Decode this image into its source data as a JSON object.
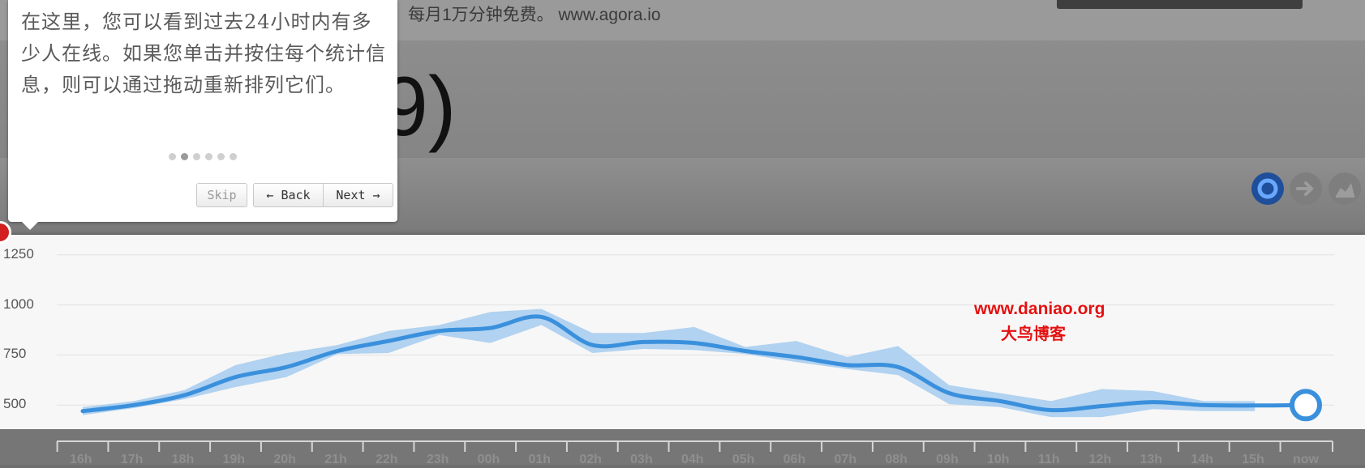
{
  "background": {
    "top_text": "。每月1万分钟免费。 www.agora.io",
    "heading_fragment": "9)"
  },
  "toolbar": {
    "icons": [
      "circle-chart-icon",
      "arrow-right-icon",
      "area-chart-icon"
    ],
    "accent": "#1f4f9a"
  },
  "tour": {
    "text": "在这里，您可以看到过去24小时内有多少人在线。如果您单击并按住每个统计信息，则可以通过拖动重新排列它们。",
    "step": 2,
    "step_count": 6,
    "skip_label": "Skip",
    "back_label": "← Back",
    "next_label": "Next →"
  },
  "watermark": {
    "url": "www.daniao.org",
    "name": "大鸟博客"
  },
  "chart_data": {
    "type": "line",
    "x": [
      "16h",
      "17h",
      "18h",
      "19h",
      "20h",
      "21h",
      "22h",
      "23h",
      "00h",
      "01h",
      "02h",
      "03h",
      "04h",
      "05h",
      "06h",
      "07h",
      "08h",
      "09h",
      "10h",
      "11h",
      "12h",
      "13h",
      "14h",
      "15h",
      "now"
    ],
    "y_ticks": [
      500,
      750,
      1000,
      1250
    ],
    "ylim": [
      380,
      1350
    ],
    "series": [
      {
        "values": [
          470,
          500,
          550,
          640,
          690,
          770,
          820,
          870,
          885,
          940,
          800,
          815,
          810,
          770,
          740,
          700,
          690,
          560,
          520,
          475,
          495,
          515,
          500,
          498,
          500
        ],
        "low": [
          450,
          485,
          530,
          590,
          640,
          755,
          760,
          850,
          810,
          900,
          760,
          780,
          775,
          755,
          715,
          680,
          650,
          505,
          490,
          440,
          440,
          480,
          470,
          470,
          500
        ],
        "high": [
          490,
          520,
          575,
          700,
          760,
          800,
          870,
          900,
          965,
          980,
          860,
          860,
          890,
          790,
          820,
          740,
          795,
          600,
          560,
          520,
          580,
          570,
          520,
          520,
          500
        ]
      }
    ],
    "line_color": "#3a90dc",
    "band_color": "#a9cdee"
  }
}
